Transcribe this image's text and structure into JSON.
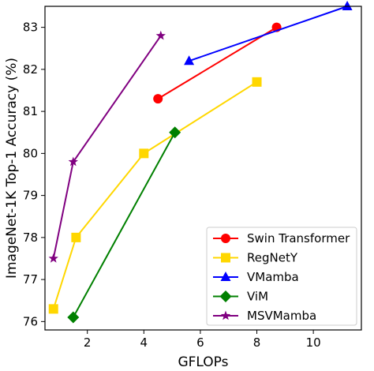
{
  "chart_data": {
    "type": "line",
    "xlabel": "GFLOPs",
    "ylabel": "ImageNet-1K Top-1 Accuracy (%)",
    "xlim": [
      0.5,
      11.7
    ],
    "ylim": [
      75.8,
      83.5
    ],
    "xticks": [
      2,
      4,
      6,
      8,
      10
    ],
    "yticks": [
      76,
      77,
      78,
      79,
      80,
      81,
      82,
      83
    ],
    "grid": false,
    "legend_position": "lower-right",
    "series": [
      {
        "name": "Swin Transformer",
        "color": "#ff0000",
        "marker": "circle",
        "points": [
          [
            4.5,
            81.3
          ],
          [
            8.7,
            83.0
          ]
        ]
      },
      {
        "name": "RegNetY",
        "color": "#ffd700",
        "marker": "square",
        "points": [
          [
            0.8,
            76.3
          ],
          [
            1.6,
            78.0
          ],
          [
            4.0,
            80.0
          ],
          [
            8.0,
            81.7
          ]
        ]
      },
      {
        "name": "VMamba",
        "color": "#0000ff",
        "marker": "triangle",
        "points": [
          [
            5.6,
            82.2
          ],
          [
            11.2,
            83.5
          ]
        ]
      },
      {
        "name": "ViM",
        "color": "#008000",
        "marker": "diamond",
        "points": [
          [
            1.5,
            76.1
          ],
          [
            5.1,
            80.5
          ]
        ]
      },
      {
        "name": "MSVMamba",
        "color": "#800080",
        "marker": "star",
        "points": [
          [
            0.8,
            77.5
          ],
          [
            1.5,
            79.8
          ],
          [
            4.6,
            82.8
          ]
        ]
      }
    ]
  }
}
